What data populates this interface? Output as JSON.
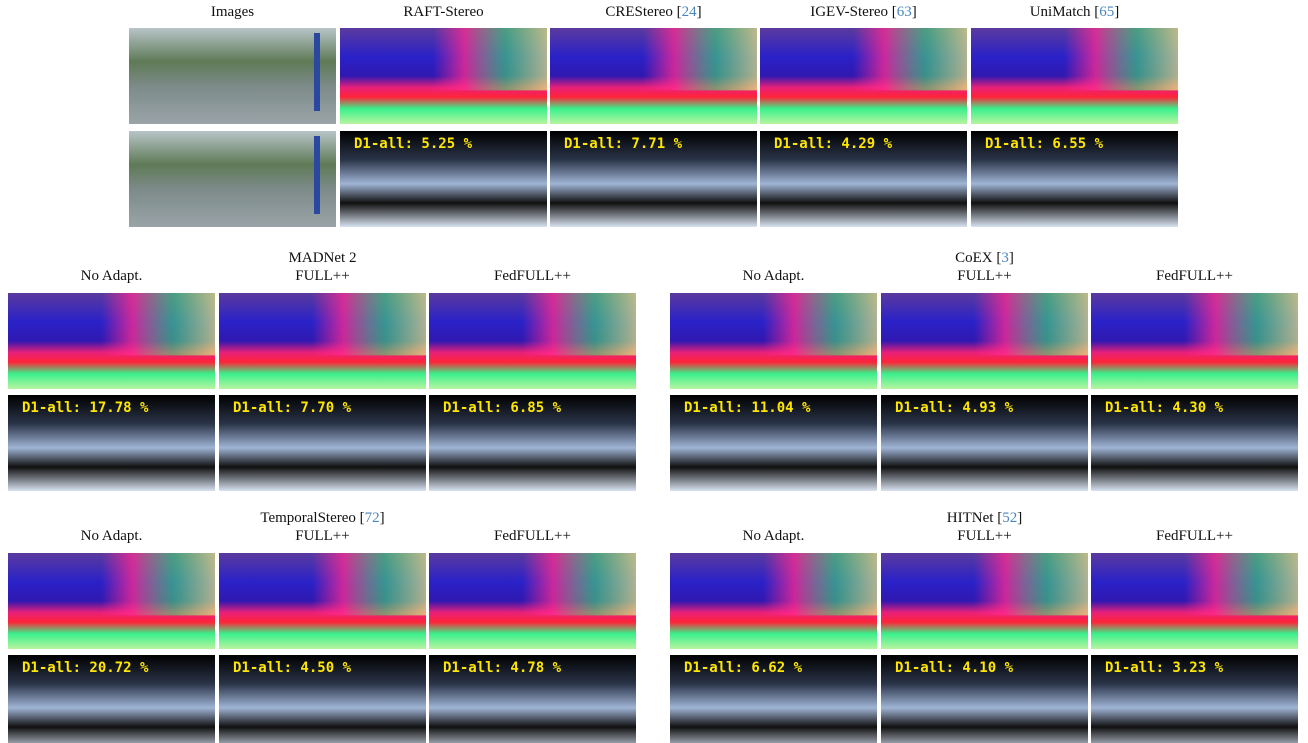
{
  "top": {
    "headers": [
      {
        "text": "Images"
      },
      {
        "text": "RAFT-Stereo"
      },
      {
        "text": "CREStereo [",
        "ref": "24",
        "tail": "]"
      },
      {
        "text": "IGEV-Stereo [",
        "ref": "63",
        "tail": "]"
      },
      {
        "text": "UniMatch [",
        "ref": "65",
        "tail": "]"
      }
    ],
    "metrics": [
      "D1-all: 5.25 %",
      "D1-all: 7.71 %",
      "D1-all: 4.29 %",
      "D1-all: 6.55 %"
    ]
  },
  "groups": [
    {
      "title": {
        "text": "MADNet 2"
      },
      "columns": [
        "No Adapt.",
        "FULL++",
        "FedFULL++"
      ],
      "metrics": [
        "D1-all: 17.78 %",
        "D1-all: 7.70 %",
        "D1-all: 6.85 %"
      ]
    },
    {
      "title": {
        "text": "CoEX [",
        "ref": "3",
        "tail": "]"
      },
      "columns": [
        "No Adapt.",
        "FULL++",
        "FedFULL++"
      ],
      "metrics": [
        "D1-all: 11.04 %",
        "D1-all: 4.93 %",
        "D1-all: 4.30 %"
      ]
    },
    {
      "title": {
        "text": "TemporalStereo [",
        "ref": "72",
        "tail": "]"
      },
      "columns": [
        "No Adapt.",
        "FULL++",
        "FedFULL++"
      ],
      "metrics": [
        "D1-all: 20.72 %",
        "D1-all: 4.50 %",
        "D1-all: 4.78 %"
      ]
    },
    {
      "title": {
        "text": "HITNet [",
        "ref": "52",
        "tail": "]"
      },
      "columns": [
        "No Adapt.",
        "FULL++",
        "FedFULL++"
      ],
      "metrics": [
        "D1-all: 6.62 %",
        "D1-all: 4.10 %",
        "D1-all: 3.23 %"
      ]
    }
  ]
}
